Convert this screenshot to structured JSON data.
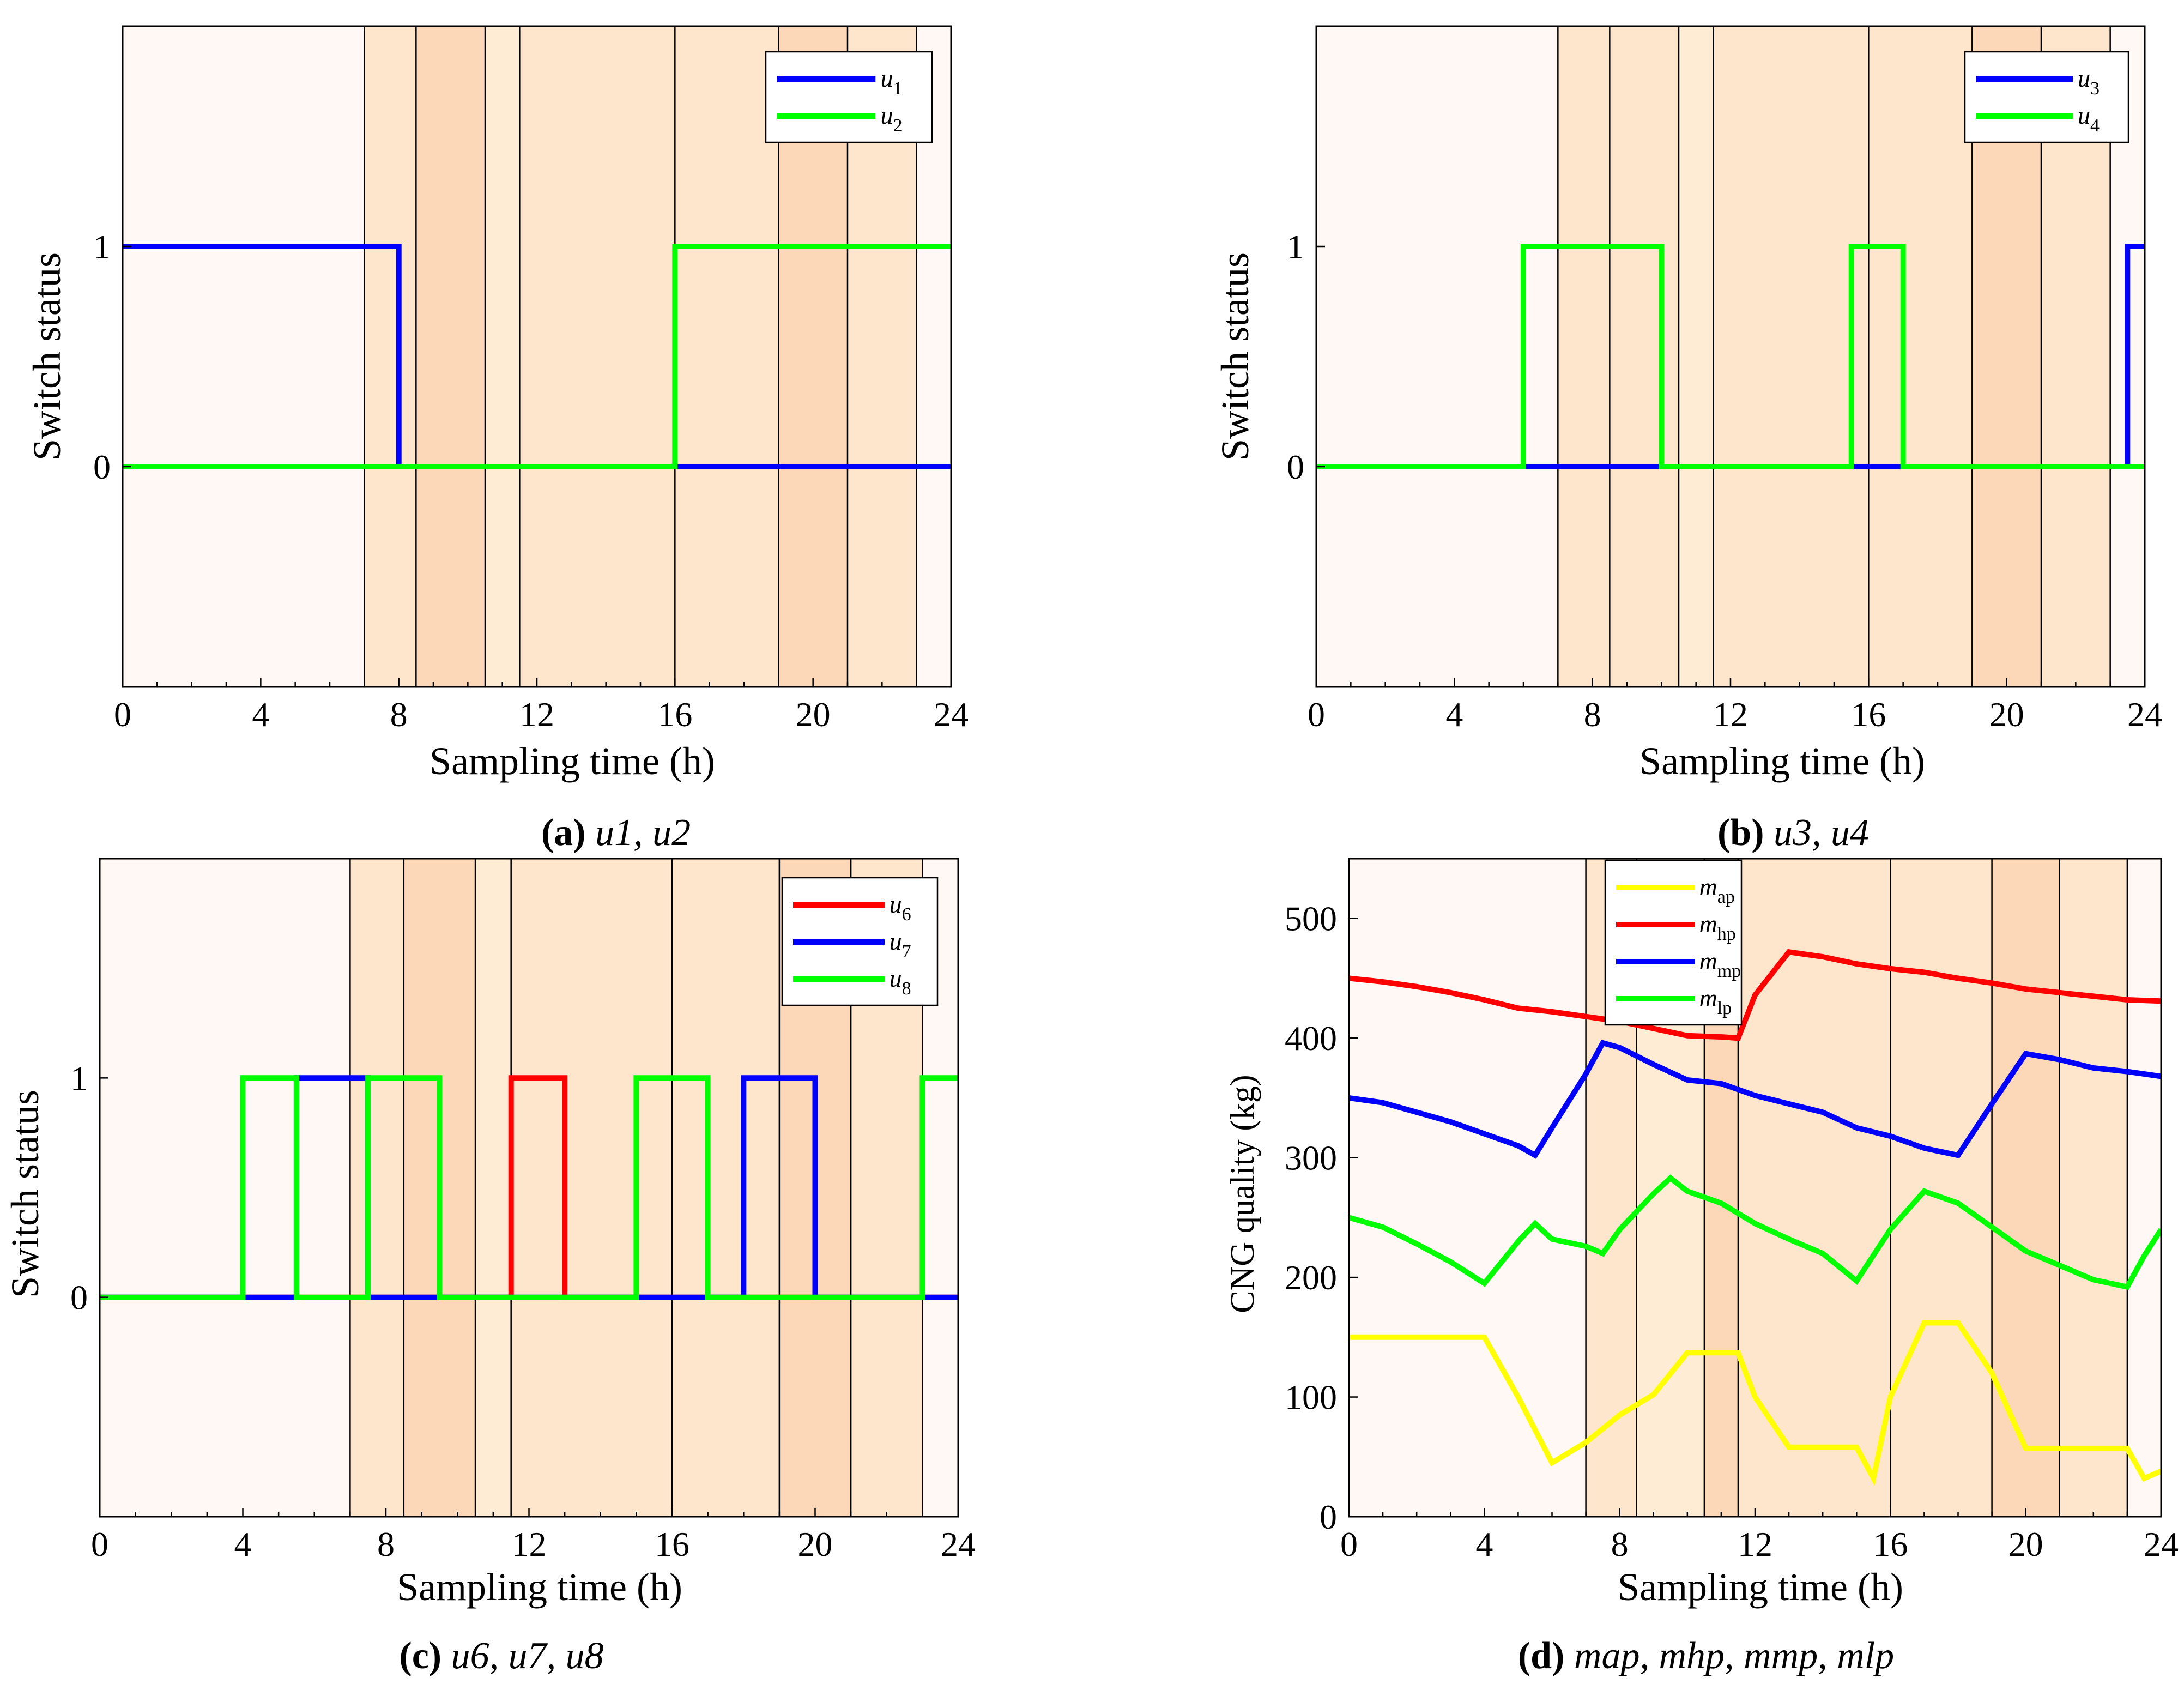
{
  "colors": {
    "blue": "#0000ff",
    "green": "#00ff00",
    "red": "#ff0000",
    "yellow": "#ffff00",
    "bands": [
      "#fff8f5",
      "#fde6cc",
      "#fcd7b8",
      "#feecd4"
    ]
  },
  "chart_data": [
    {
      "id": "a",
      "type": "line",
      "xlabel": "Sampling time (h)",
      "ylabel": "Switch status",
      "xlim": [
        0,
        24
      ],
      "ylim": [
        -1,
        2
      ],
      "xticks": [
        0,
        4,
        8,
        12,
        16,
        20,
        24
      ],
      "yticks": [
        0,
        1
      ],
      "legend_position": "top-right",
      "caption": {
        "letter": "(a)",
        "text": "u1, u2"
      },
      "bands": [
        {
          "start": 0,
          "end": 7,
          "level": 0
        },
        {
          "start": 7,
          "end": 8.5,
          "level": 1
        },
        {
          "start": 8.5,
          "end": 10.5,
          "level": 2
        },
        {
          "start": 10.5,
          "end": 11.5,
          "level": 3
        },
        {
          "start": 11.5,
          "end": 16,
          "level": 1
        },
        {
          "start": 16,
          "end": 19,
          "level": 1
        },
        {
          "start": 19,
          "end": 21,
          "level": 2
        },
        {
          "start": 21,
          "end": 23,
          "level": 1
        },
        {
          "start": 23,
          "end": 24,
          "level": 0
        }
      ],
      "series": [
        {
          "name": "u1",
          "sub": "1",
          "color": "blue",
          "x": [
            0,
            8,
            8,
            16,
            16,
            24
          ],
          "y": [
            1,
            1,
            0,
            0,
            0,
            0
          ]
        },
        {
          "name": "u2",
          "sub": "2",
          "color": "green",
          "x": [
            0,
            16,
            16,
            24
          ],
          "y": [
            0,
            0,
            1,
            1
          ]
        }
      ]
    },
    {
      "id": "b",
      "type": "line",
      "xlabel": "Sampling time (h)",
      "ylabel": "Switch status",
      "xlim": [
        0,
        24
      ],
      "ylim": [
        -1,
        2
      ],
      "xticks": [
        0,
        4,
        8,
        12,
        16,
        20,
        24
      ],
      "yticks": [
        0,
        1
      ],
      "legend_position": "top-right",
      "caption": {
        "letter": "(b)",
        "text": "u3, u4"
      },
      "bands": [
        {
          "start": 0,
          "end": 7,
          "level": 0
        },
        {
          "start": 7,
          "end": 8.5,
          "level": 1
        },
        {
          "start": 8.5,
          "end": 10.5,
          "level": 1
        },
        {
          "start": 10.5,
          "end": 11.5,
          "level": 3
        },
        {
          "start": 11.5,
          "end": 16,
          "level": 1
        },
        {
          "start": 16,
          "end": 19,
          "level": 1
        },
        {
          "start": 19,
          "end": 21,
          "level": 2
        },
        {
          "start": 21,
          "end": 23,
          "level": 1
        },
        {
          "start": 23,
          "end": 24,
          "level": 0
        }
      ],
      "series": [
        {
          "name": "u3",
          "sub": "3",
          "color": "blue",
          "x": [
            0,
            23.5,
            23.5,
            24
          ],
          "y": [
            0,
            0,
            1,
            1
          ]
        },
        {
          "name": "u4",
          "sub": "4",
          "color": "green",
          "x": [
            0,
            6,
            6,
            10,
            10,
            15.5,
            15.5,
            17,
            17,
            24
          ],
          "y": [
            0,
            0,
            1,
            1,
            0,
            0,
            1,
            1,
            0,
            0
          ]
        }
      ]
    },
    {
      "id": "c",
      "type": "line",
      "xlabel": "Sampling time (h)",
      "ylabel": "Switch status",
      "xlim": [
        0,
        24
      ],
      "ylim": [
        -1,
        2
      ],
      "xticks": [
        0,
        4,
        8,
        12,
        16,
        20,
        24
      ],
      "yticks": [
        0,
        1
      ],
      "legend_position": "top-right",
      "caption": {
        "letter": "(c)",
        "text": "u6, u7, u8"
      },
      "bands": [
        {
          "start": 0,
          "end": 7,
          "level": 0
        },
        {
          "start": 7,
          "end": 8.5,
          "level": 1
        },
        {
          "start": 8.5,
          "end": 10.5,
          "level": 2
        },
        {
          "start": 10.5,
          "end": 11.5,
          "level": 3
        },
        {
          "start": 11.5,
          "end": 16,
          "level": 1
        },
        {
          "start": 16,
          "end": 19,
          "level": 1
        },
        {
          "start": 19,
          "end": 21,
          "level": 2
        },
        {
          "start": 21,
          "end": 23,
          "level": 1
        },
        {
          "start": 23,
          "end": 24,
          "level": 0
        }
      ],
      "series": [
        {
          "name": "u6",
          "sub": "6",
          "color": "red",
          "x": [
            0,
            11.5,
            11.5,
            13,
            13,
            24
          ],
          "y": [
            0,
            0,
            1,
            1,
            0,
            0
          ]
        },
        {
          "name": "u7",
          "sub": "7",
          "color": "blue",
          "x": [
            0,
            5.5,
            5.5,
            7.5,
            7.5,
            18,
            18,
            20,
            20,
            24
          ],
          "y": [
            0,
            0,
            1,
            1,
            0,
            0,
            1,
            1,
            0,
            0
          ]
        },
        {
          "name": "u8",
          "sub": "8",
          "color": "green",
          "x": [
            0,
            4,
            4,
            5.5,
            5.5,
            7.5,
            7.5,
            9.5,
            9.5,
            15,
            15,
            17,
            17,
            23,
            23,
            24
          ],
          "y": [
            0,
            0,
            1,
            1,
            0,
            0,
            1,
            1,
            0,
            0,
            1,
            1,
            0,
            0,
            1,
            1
          ]
        }
      ]
    },
    {
      "id": "d",
      "type": "line",
      "xlabel": "Sampling time (h)",
      "ylabel": "CNG quality (kg)",
      "xlim": [
        0,
        24
      ],
      "ylim": [
        0,
        550
      ],
      "xticks": [
        0,
        4,
        8,
        12,
        16,
        20,
        24
      ],
      "yticks": [
        0,
        100,
        200,
        300,
        400,
        500
      ],
      "legend_position": "top-left",
      "caption": {
        "letter": "(d)",
        "text": "map, mhp, mmp, mlp"
      },
      "bands": [
        {
          "start": 0,
          "end": 7,
          "level": 0
        },
        {
          "start": 7,
          "end": 8.5,
          "level": 1
        },
        {
          "start": 8.5,
          "end": 10.5,
          "level": 3
        },
        {
          "start": 10.5,
          "end": 11.5,
          "level": 2
        },
        {
          "start": 11.5,
          "end": 16,
          "level": 1
        },
        {
          "start": 16,
          "end": 19,
          "level": 1
        },
        {
          "start": 19,
          "end": 21,
          "level": 2
        },
        {
          "start": 21,
          "end": 23,
          "level": 1
        },
        {
          "start": 23,
          "end": 24,
          "level": 0
        }
      ],
      "series": [
        {
          "name": "map",
          "sub": "ap",
          "color": "yellow",
          "x": [
            0,
            1,
            2,
            3,
            4,
            5,
            6,
            7,
            8,
            9,
            10,
            11,
            11.5,
            12,
            13,
            14,
            15,
            15.5,
            16,
            17,
            18,
            19,
            20,
            21,
            22,
            23,
            23.5,
            24
          ],
          "y": [
            150,
            150,
            150,
            150,
            150,
            100,
            45,
            62,
            85,
            102,
            137,
            137,
            137,
            100,
            58,
            58,
            58,
            32,
            100,
            162,
            162,
            120,
            57,
            57,
            57,
            57,
            32,
            38
          ]
        },
        {
          "name": "mhp",
          "sub": "hp",
          "color": "red",
          "x": [
            0,
            1,
            2,
            3,
            4,
            5,
            6,
            7,
            8,
            9,
            10,
            11,
            11.5,
            12,
            13,
            14,
            15,
            16,
            17,
            18,
            19,
            20,
            21,
            22,
            23,
            24
          ],
          "y": [
            450,
            447,
            443,
            438,
            432,
            425,
            422,
            418,
            414,
            408,
            402,
            401,
            400,
            436,
            472,
            468,
            462,
            458,
            455,
            450,
            446,
            441,
            438,
            435,
            432,
            431
          ]
        },
        {
          "name": "mmp",
          "sub": "mp",
          "color": "blue",
          "x": [
            0,
            1,
            2,
            3,
            4,
            5,
            5.5,
            6,
            7,
            7.5,
            8,
            9,
            10,
            11,
            12,
            13,
            14,
            15,
            16,
            17,
            18,
            19,
            20,
            21,
            22,
            23,
            24
          ],
          "y": [
            350,
            346,
            338,
            330,
            320,
            310,
            302,
            325,
            370,
            396,
            392,
            378,
            365,
            362,
            352,
            345,
            338,
            325,
            318,
            308,
            302,
            345,
            387,
            382,
            375,
            372,
            368
          ]
        },
        {
          "name": "mlp",
          "sub": "lp",
          "color": "green",
          "x": [
            0,
            1,
            2,
            3,
            4,
            5,
            5.5,
            6,
            7,
            7.5,
            8,
            9,
            9.5,
            10,
            11,
            12,
            13,
            14,
            15,
            16,
            17,
            18,
            19,
            20,
            21,
            22,
            23,
            23.5,
            24
          ],
          "y": [
            250,
            242,
            228,
            213,
            195,
            230,
            245,
            232,
            226,
            220,
            240,
            270,
            283,
            272,
            262,
            245,
            232,
            220,
            197,
            240,
            272,
            262,
            242,
            222,
            210,
            198,
            192,
            218,
            240
          ]
        }
      ]
    }
  ]
}
